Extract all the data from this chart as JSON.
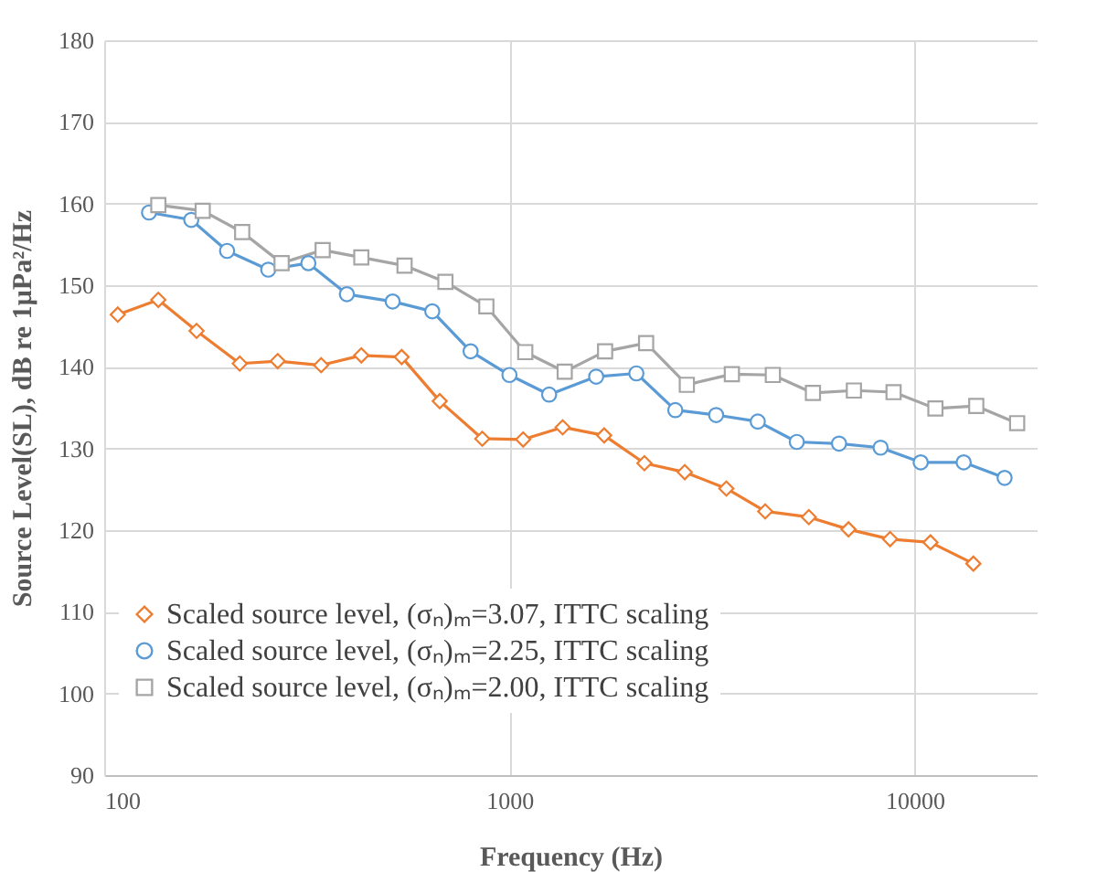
{
  "chart_data": {
    "type": "line",
    "xlabel": "Frequency (Hz)",
    "ylabel": "Source Level(SL), dB re 1µPa²/Hz",
    "log": "x",
    "xlim": [
      100,
      20000
    ],
    "xticks": [
      100,
      1000,
      10000
    ],
    "ylim": [
      90,
      180
    ],
    "yticks": [
      90,
      100,
      110,
      120,
      130,
      140,
      150,
      160,
      170,
      180
    ],
    "grid": true,
    "legend": "bottom left",
    "line_style": "solid",
    "series": [
      {
        "name": "Scaled source level, (σₙ)ₘ=3.07, ITTC scaling",
        "color": "#ed7d31",
        "marker": "diamond",
        "x": [
          108,
          136,
          169,
          216,
          268,
          343,
          431,
          542,
          673,
          857,
          1081,
          1353,
          1713,
          2153,
          2708,
          3430,
          4277,
          5480,
          6866,
          8696,
          10940,
          13960
        ],
        "values": [
          146.4,
          148.2,
          144.4,
          140.4,
          140.7,
          140.2,
          141.4,
          141.2,
          135.8,
          131.2,
          131.1,
          132.6,
          131.6,
          128.2,
          127.1,
          125.1,
          122.3,
          121.6,
          120.1,
          118.9,
          118.5,
          115.9
        ]
      },
      {
        "name": "Scaled source level, (σₙ)ₘ=2.25, ITTC scaling",
        "color": "#5b9bd5",
        "marker": "circle",
        "x": [
          129,
          164,
          201,
          254,
          319,
          397,
          515,
          645,
          802,
          1000,
          1253,
          1637,
          2057,
          2566,
          3236,
          4100,
          5118,
          6506,
          8240,
          10350,
          13210,
          16670
        ],
        "values": [
          158.9,
          158.0,
          154.2,
          151.9,
          152.7,
          148.9,
          148.0,
          146.8,
          141.9,
          139.0,
          136.6,
          138.8,
          139.2,
          134.7,
          134.1,
          133.3,
          130.8,
          130.6,
          130.1,
          128.3,
          128.3,
          126.4
        ]
      },
      {
        "name": "Scaled source level, (σₙ)ₘ=2.00, ITTC scaling",
        "color": "#a5a5a5",
        "marker": "square",
        "x": [
          136,
          175,
          219,
          274,
          346,
          431,
          551,
          695,
          877,
          1094,
          1369,
          1722,
          2174,
          2740,
          3539,
          4467,
          5610,
          7080,
          8870,
          11250,
          14190,
          17900
        ],
        "values": [
          159.8,
          159.1,
          156.5,
          152.7,
          154.3,
          153.4,
          152.4,
          150.4,
          147.4,
          141.8,
          139.4,
          141.9,
          142.9,
          137.8,
          139.1,
          139.0,
          136.8,
          137.1,
          136.9,
          134.9,
          135.2,
          133.1
        ]
      }
    ]
  }
}
